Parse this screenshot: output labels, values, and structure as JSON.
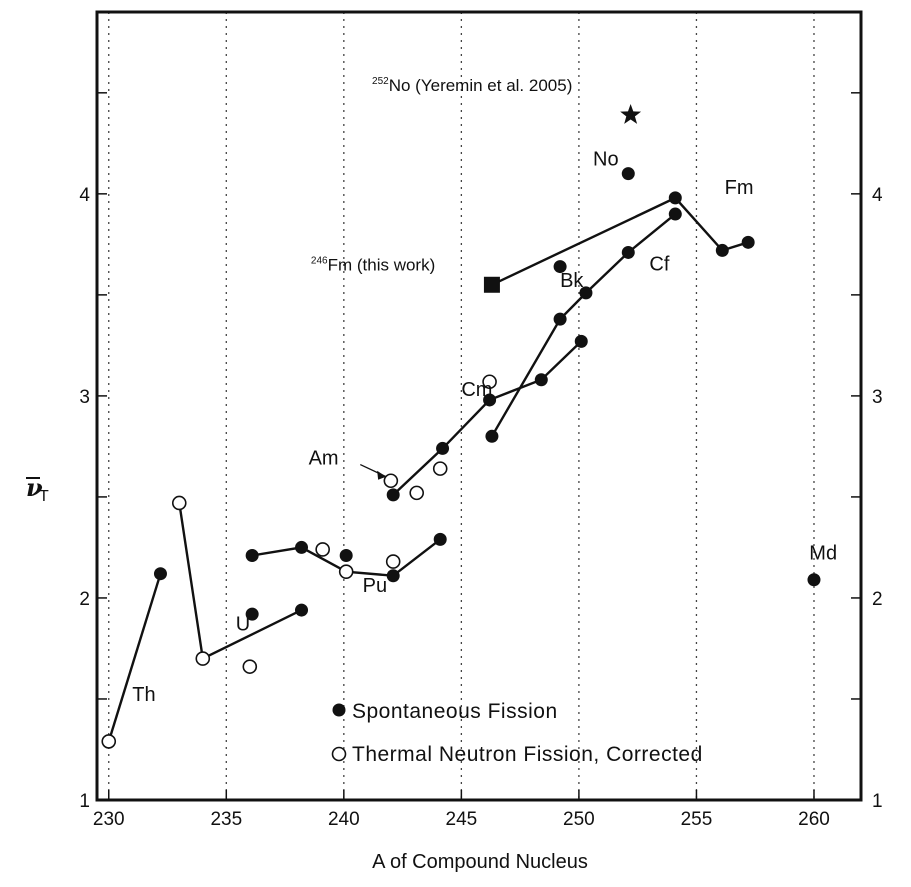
{
  "chart_data": {
    "type": "scatter",
    "xlabel": "A of Compound Nucleus",
    "ylabel": "ν",
    "ylabel_sub": "T",
    "xlim": [
      229.5,
      262
    ],
    "ylim": [
      1,
      4.9
    ],
    "x_ticks": [
      230,
      235,
      240,
      245,
      250,
      255,
      260
    ],
    "y_ticks_labeled": [
      1,
      2,
      3,
      4
    ],
    "grid": "vertical dotted",
    "legend": [
      {
        "marker": "filled-circle",
        "label": "Spontaneous Fission"
      },
      {
        "marker": "open-circle",
        "label": "Thermal Neutron Fission, Corrected"
      }
    ],
    "series": [
      {
        "name": "Spontaneous Fission",
        "marker": "filled-circle",
        "points": [
          [
            232.2,
            2.12
          ],
          [
            236.1,
            2.21
          ],
          [
            236.1,
            1.92
          ],
          [
            238.2,
            2.25
          ],
          [
            238.2,
            1.94
          ],
          [
            240.1,
            2.21
          ],
          [
            242.1,
            2.11
          ],
          [
            242.1,
            2.51
          ],
          [
            244.1,
            2.29
          ],
          [
            244.2,
            2.74
          ],
          [
            246.2,
            2.98
          ],
          [
            246.3,
            2.8
          ],
          [
            248.4,
            3.08
          ],
          [
            249.2,
            3.38
          ],
          [
            249.2,
            3.64
          ],
          [
            250.1,
            3.27
          ],
          [
            250.3,
            3.51
          ],
          [
            252.1,
            3.71
          ],
          [
            252.1,
            4.1
          ],
          [
            254.1,
            3.9
          ],
          [
            254.1,
            3.98
          ],
          [
            256.1,
            3.72
          ],
          [
            257.2,
            3.76
          ],
          [
            260.0,
            2.09
          ]
        ]
      },
      {
        "name": "Thermal Neutron Fission, Corrected",
        "marker": "open-circle",
        "points": [
          [
            230.0,
            1.29
          ],
          [
            233.0,
            2.47
          ],
          [
            234.0,
            1.7
          ],
          [
            236.0,
            1.66
          ],
          [
            239.1,
            2.24
          ],
          [
            240.1,
            2.13
          ],
          [
            242.0,
            2.58
          ],
          [
            242.1,
            2.18
          ],
          [
            243.1,
            2.52
          ],
          [
            244.1,
            2.64
          ],
          [
            246.2,
            3.07
          ]
        ]
      },
      {
        "name": "246Fm (this work)",
        "marker": "filled-square",
        "points": [
          [
            246.3,
            3.55
          ]
        ]
      },
      {
        "name": "252No (Yeremin et al. 2005)",
        "marker": "star",
        "points": [
          [
            252.2,
            4.39
          ]
        ]
      }
    ],
    "lines": [
      [
        [
          230.0,
          1.29
        ],
        [
          232.2,
          2.12
        ]
      ],
      [
        [
          233.0,
          2.47
        ],
        [
          234.0,
          1.7
        ],
        [
          238.2,
          1.94
        ]
      ],
      [
        [
          236.1,
          2.21
        ],
        [
          238.2,
          2.25
        ],
        [
          240.1,
          2.13
        ],
        [
          242.1,
          2.11
        ],
        [
          244.1,
          2.29
        ]
      ],
      [
        [
          242.1,
          2.51
        ],
        [
          244.2,
          2.74
        ],
        [
          246.2,
          2.98
        ],
        [
          248.4,
          3.08
        ],
        [
          250.1,
          3.27
        ]
      ],
      [
        [
          246.3,
          2.8
        ],
        [
          249.2,
          3.38
        ],
        [
          250.3,
          3.51
        ],
        [
          252.1,
          3.71
        ],
        [
          254.1,
          3.9
        ]
      ],
      [
        [
          246.3,
          3.55
        ],
        [
          254.1,
          3.98
        ],
        [
          256.1,
          3.72
        ],
        [
          257.2,
          3.76
        ]
      ]
    ],
    "element_labels": [
      {
        "text": "Th",
        "x": 231.0,
        "y": 1.49
      },
      {
        "text": "U",
        "x": 235.4,
        "y": 1.84
      },
      {
        "text": "Pu",
        "x": 240.8,
        "y": 2.03
      },
      {
        "text": "Am",
        "x": 238.5,
        "y": 2.66
      },
      {
        "text": "Cm",
        "x": 245.0,
        "y": 3.0
      },
      {
        "text": "Bk",
        "x": 249.2,
        "y": 3.54
      },
      {
        "text": "Cf",
        "x": 253.0,
        "y": 3.62
      },
      {
        "text": "Fm",
        "x": 256.2,
        "y": 4.0
      },
      {
        "text": "No",
        "x": 250.6,
        "y": 4.14
      },
      {
        "text": "Md",
        "x": 259.8,
        "y": 2.19
      }
    ],
    "annotations": [
      {
        "sup": "252",
        "text": "No (Yeremin et al. 2005)",
        "x": 241.2,
        "y": 4.51
      },
      {
        "sup": "246",
        "text": "Fm (this work)",
        "x": 238.6,
        "y": 3.62
      }
    ]
  }
}
